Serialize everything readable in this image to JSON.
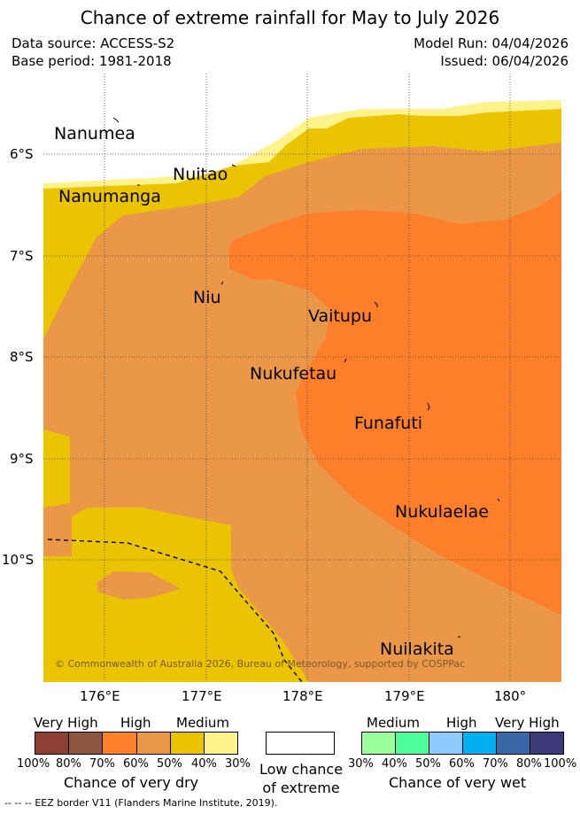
{
  "header": {
    "title": "Chance of extreme rainfall for May to July 2026",
    "data_source": "Data source: ACCESS-S2",
    "base_period": "Base period: 1981-2018",
    "model_run": "Model Run: 04/04/2026",
    "issued": "Issued: 06/04/2026"
  },
  "map": {
    "islands": [
      "Nanumea",
      "Nuitao",
      "Nanumanga",
      "Niu",
      "Vaitupu",
      "Nukufetau",
      "Funafuti",
      "Nukulaelae",
      "Nuilakita"
    ],
    "lat_labels": [
      "6°S",
      "7°S",
      "8°S",
      "9°S",
      "10°S"
    ],
    "lon_labels": [
      "176°E",
      "177°E",
      "178°E",
      "179°E",
      "180°"
    ],
    "copyright": "© Commonwealth of Australia 2026, Bureau of Meteorology, supported by COSPPac"
  },
  "legend_dry": {
    "levels": [
      "Very High",
      "High",
      "Medium"
    ],
    "ticks": [
      "100%",
      "80%",
      "70%",
      "60%",
      "50%",
      "40%",
      "30%"
    ],
    "label": "Chance of very dry",
    "colors": [
      "#8e3f33",
      "#8e5640",
      "#fd7f2a",
      "#ea9748",
      "#eac400",
      "#fef38a"
    ]
  },
  "legend_low": {
    "label_line1": "Low chance",
    "label_line2": "of extreme"
  },
  "legend_wet": {
    "levels": [
      "Medium",
      "High",
      "Very High"
    ],
    "ticks": [
      "30%",
      "40%",
      "50%",
      "60%",
      "70%",
      "80%",
      "100%"
    ],
    "label": "Chance of very wet",
    "colors": [
      "#9bff9b",
      "#4dff9b",
      "#8fcaff",
      "#00b1f1",
      "#3a67a5",
      "#3a3b78"
    ]
  },
  "footer": {
    "eez_text": "EEZ border V11 (Flanders Marine Institute, 2019)."
  }
}
